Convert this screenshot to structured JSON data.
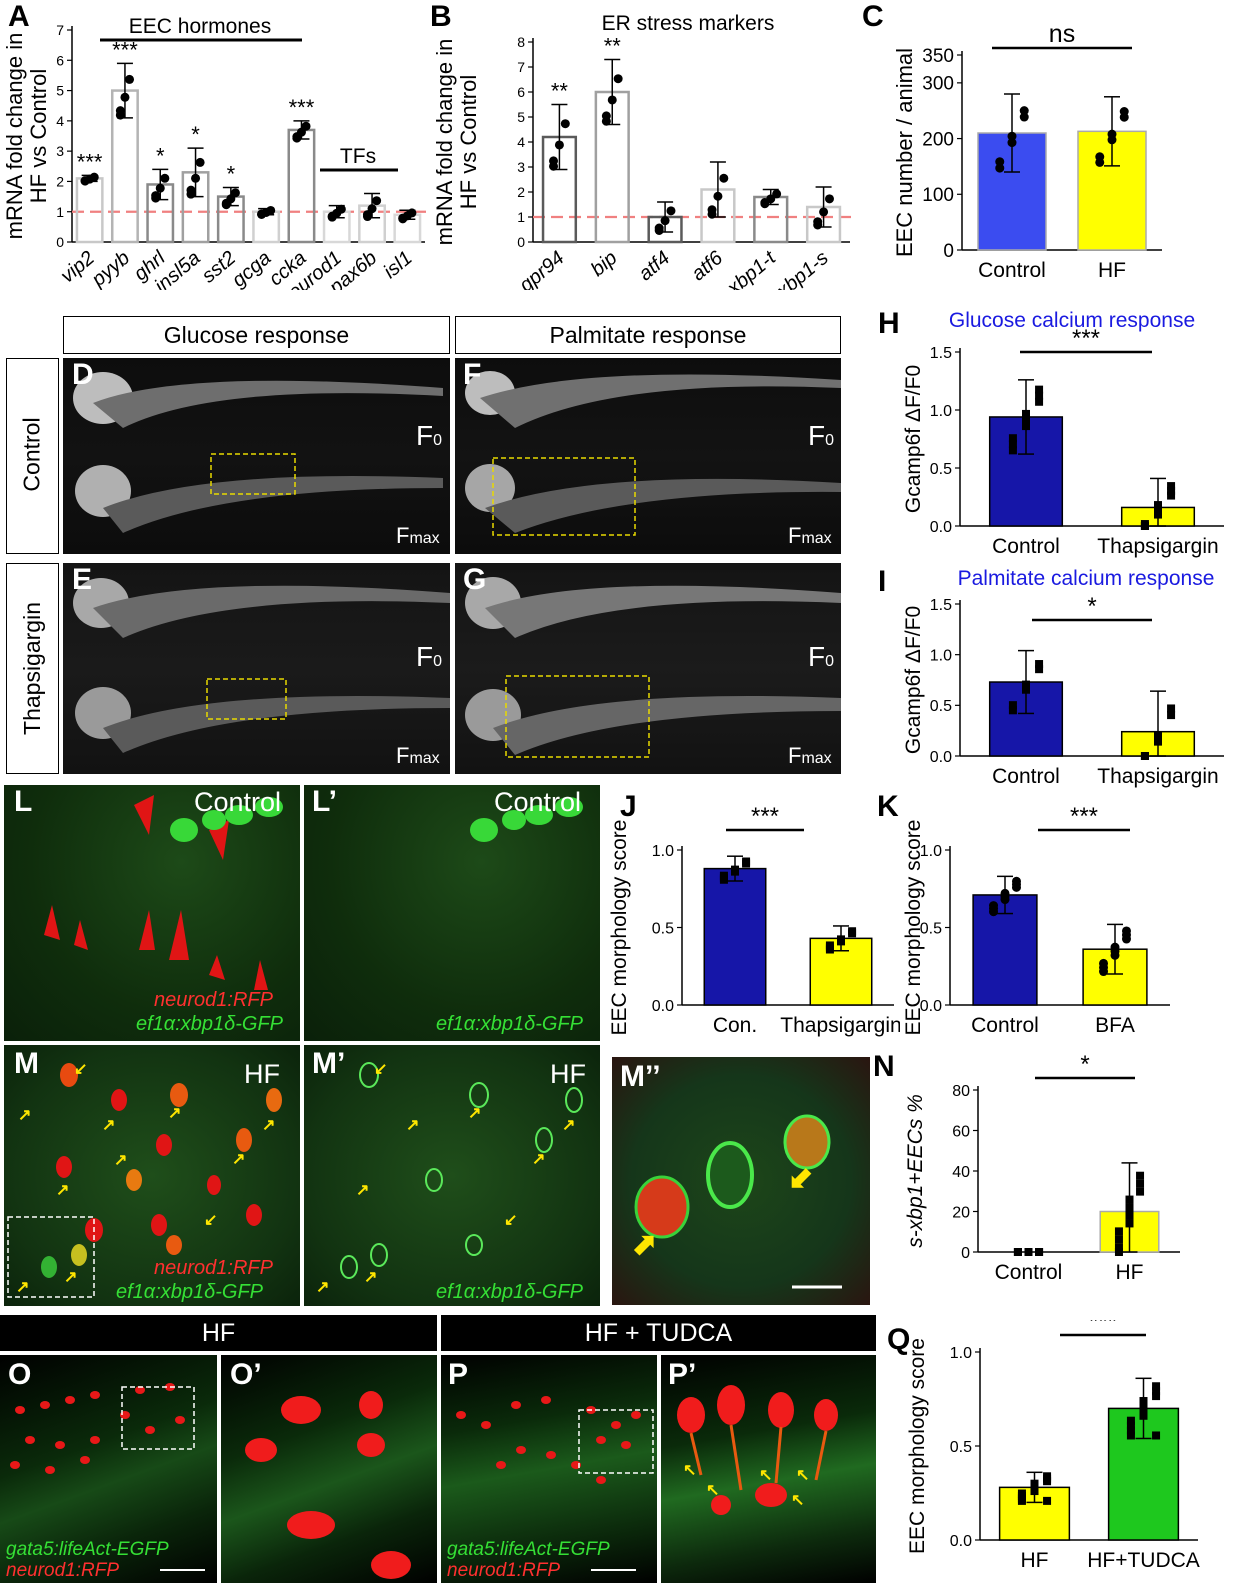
{
  "panels": {
    "A": {
      "label": "A",
      "group_title": "EEC hormones",
      "tfs_title": "TFs",
      "ylabel_line1": "mRNA fold change in",
      "ylabel_line2": "HF vs Control",
      "yticks": [
        "0",
        "1",
        "2",
        "3",
        "4",
        "5",
        "6",
        "7"
      ],
      "chart_data": {
        "type": "bar",
        "categories": [
          "vip2",
          "pyyb",
          "ghrl",
          "insl5a",
          "sst2",
          "gcga",
          "ccka",
          "neurod1",
          "pax6b",
          "isl1"
        ],
        "values": [
          2.1,
          5.0,
          1.9,
          2.3,
          1.5,
          1.0,
          3.7,
          1.0,
          1.2,
          0.9
        ],
        "errors": [
          0.1,
          0.9,
          0.5,
          0.8,
          0.3,
          0.1,
          0.3,
          0.2,
          0.4,
          0.15
        ],
        "significance": [
          "***",
          "***",
          "*",
          "*",
          "*",
          "",
          "***",
          "",
          "",
          ""
        ],
        "ylim": [
          0,
          7
        ],
        "reference_line": 1
      }
    },
    "B": {
      "label": "B",
      "title": "ER stress markers",
      "ylabel_line1": "mRNA fold change in",
      "ylabel_line2": "HF vs Control",
      "yticks": [
        "0",
        "1",
        "2",
        "3",
        "4",
        "5",
        "6",
        "7",
        "8"
      ],
      "chart_data": {
        "type": "bar",
        "categories": [
          "gpr94",
          "bip",
          "atf4",
          "atf6",
          "xbp1-t",
          "xbp1-s"
        ],
        "values": [
          4.2,
          6.0,
          1.0,
          2.1,
          1.8,
          1.4
        ],
        "errors": [
          1.3,
          1.3,
          0.6,
          1.1,
          0.3,
          0.8
        ],
        "significance": [
          "**",
          "**",
          "",
          "",
          "",
          ""
        ],
        "ylim": [
          0,
          8
        ],
        "reference_line": 1
      }
    },
    "C": {
      "label": "C",
      "ylabel": "EEC number / animal",
      "significance": "ns",
      "yticks": [
        "0",
        "100",
        "200",
        "300",
        "350"
      ],
      "chart_data": {
        "type": "bar",
        "categories": [
          "Control",
          "HF"
        ],
        "values": [
          210,
          213
        ],
        "errors": [
          70,
          62
        ],
        "ylim": [
          0,
          350
        ],
        "colors": [
          "#3b4cf0",
          "#ffff00"
        ]
      }
    },
    "H": {
      "label": "H",
      "title": "Glucose calcium response",
      "ylabel": "Gcamp6f ΔF/F0",
      "significance": "***",
      "yticks": [
        "0.0",
        "0.5",
        "1.0",
        "1.5"
      ],
      "chart_data": {
        "type": "bar",
        "categories": [
          "Control",
          "Thapsigargin"
        ],
        "values": [
          0.94,
          0.16
        ],
        "errors": [
          0.32,
          0.25
        ],
        "ylim": [
          0,
          1.5
        ],
        "colors": [
          "#1616a8",
          "#ffff00"
        ]
      }
    },
    "I": {
      "label": "I",
      "title": "Palmitate calcium response",
      "ylabel": "Gcamp6f ΔF/F0",
      "significance": "*",
      "yticks": [
        "0.0",
        "0.5",
        "1.0",
        "1.5"
      ],
      "chart_data": {
        "type": "bar",
        "categories": [
          "Control",
          "Thapsigargin"
        ],
        "values": [
          0.73,
          0.24
        ],
        "errors": [
          0.31,
          0.4
        ],
        "ylim": [
          0,
          1.5
        ],
        "colors": [
          "#1616a8",
          "#ffff00"
        ]
      }
    },
    "J": {
      "label": "J",
      "ylabel": "EEC morphology score",
      "significance": "***",
      "yticks": [
        "0.0",
        "0.5",
        "1.0"
      ],
      "chart_data": {
        "type": "bar",
        "categories": [
          "Con.",
          "Thapsigargin"
        ],
        "values": [
          0.88,
          0.43
        ],
        "errors": [
          0.08,
          0.08
        ],
        "ylim": [
          0,
          1.0
        ],
        "colors": [
          "#1616a8",
          "#ffff00"
        ]
      }
    },
    "K": {
      "label": "K",
      "ylabel": "EEC morphology score",
      "significance": "***",
      "yticks": [
        "0.0",
        "0.5",
        "1.0"
      ],
      "chart_data": {
        "type": "bar",
        "categories": [
          "Control",
          "BFA"
        ],
        "values": [
          0.71,
          0.36
        ],
        "errors": [
          0.12,
          0.16
        ],
        "ylim": [
          0,
          1.0
        ],
        "colors": [
          "#1616a8",
          "#ffff00"
        ]
      }
    },
    "N": {
      "label": "N",
      "ylabel": "s-xbp1+EECs %",
      "significance": "*",
      "yticks": [
        "0",
        "20",
        "40",
        "60",
        "80"
      ],
      "chart_data": {
        "type": "bar",
        "categories": [
          "Control",
          "HF"
        ],
        "values": [
          0,
          20
        ],
        "errors": [
          0,
          24
        ],
        "ylim": [
          0,
          80
        ],
        "colors": [
          "#1616a8",
          "#ffff00"
        ]
      }
    },
    "Q": {
      "label": "Q",
      "ylabel": "EEC morphology score",
      "significance": "***",
      "yticks": [
        "0.0",
        "0.5",
        "1.0"
      ],
      "chart_data": {
        "type": "bar",
        "categories": [
          "HF",
          "HF+TUDCA"
        ],
        "values": [
          0.28,
          0.7
        ],
        "errors": [
          0.08,
          0.16
        ],
        "ylim": [
          0,
          1.0
        ],
        "colors": [
          "#ffff00",
          "#1ec81e"
        ]
      }
    }
  },
  "images": {
    "header_glucose": "Glucose response",
    "header_palmitate": "Palmitate response",
    "row_control": "Control",
    "row_thapsigargin": "Thapsigargin",
    "D": "D",
    "E": "E",
    "F": "F",
    "G": "G",
    "f0": "F",
    "f0_sub": "0",
    "fmax": "F",
    "fmax_sub": "max",
    "L": "L",
    "L_prime": "L’",
    "M": "M",
    "M_prime": "M’",
    "M_dprime": "M’’",
    "control_tag": "Control",
    "hf_tag": "HF",
    "neurod1_rfp": "neurod1:RFP",
    "xbp1_gfp": "ef1α:xbp1δ-GFP",
    "header_hf": "HF",
    "header_hf_tudca": "HF + TUDCA",
    "O": "O",
    "O_prime": "O’",
    "P": "P",
    "P_prime": "P’",
    "gata5": "gata5:lifeAct-EGFP"
  }
}
